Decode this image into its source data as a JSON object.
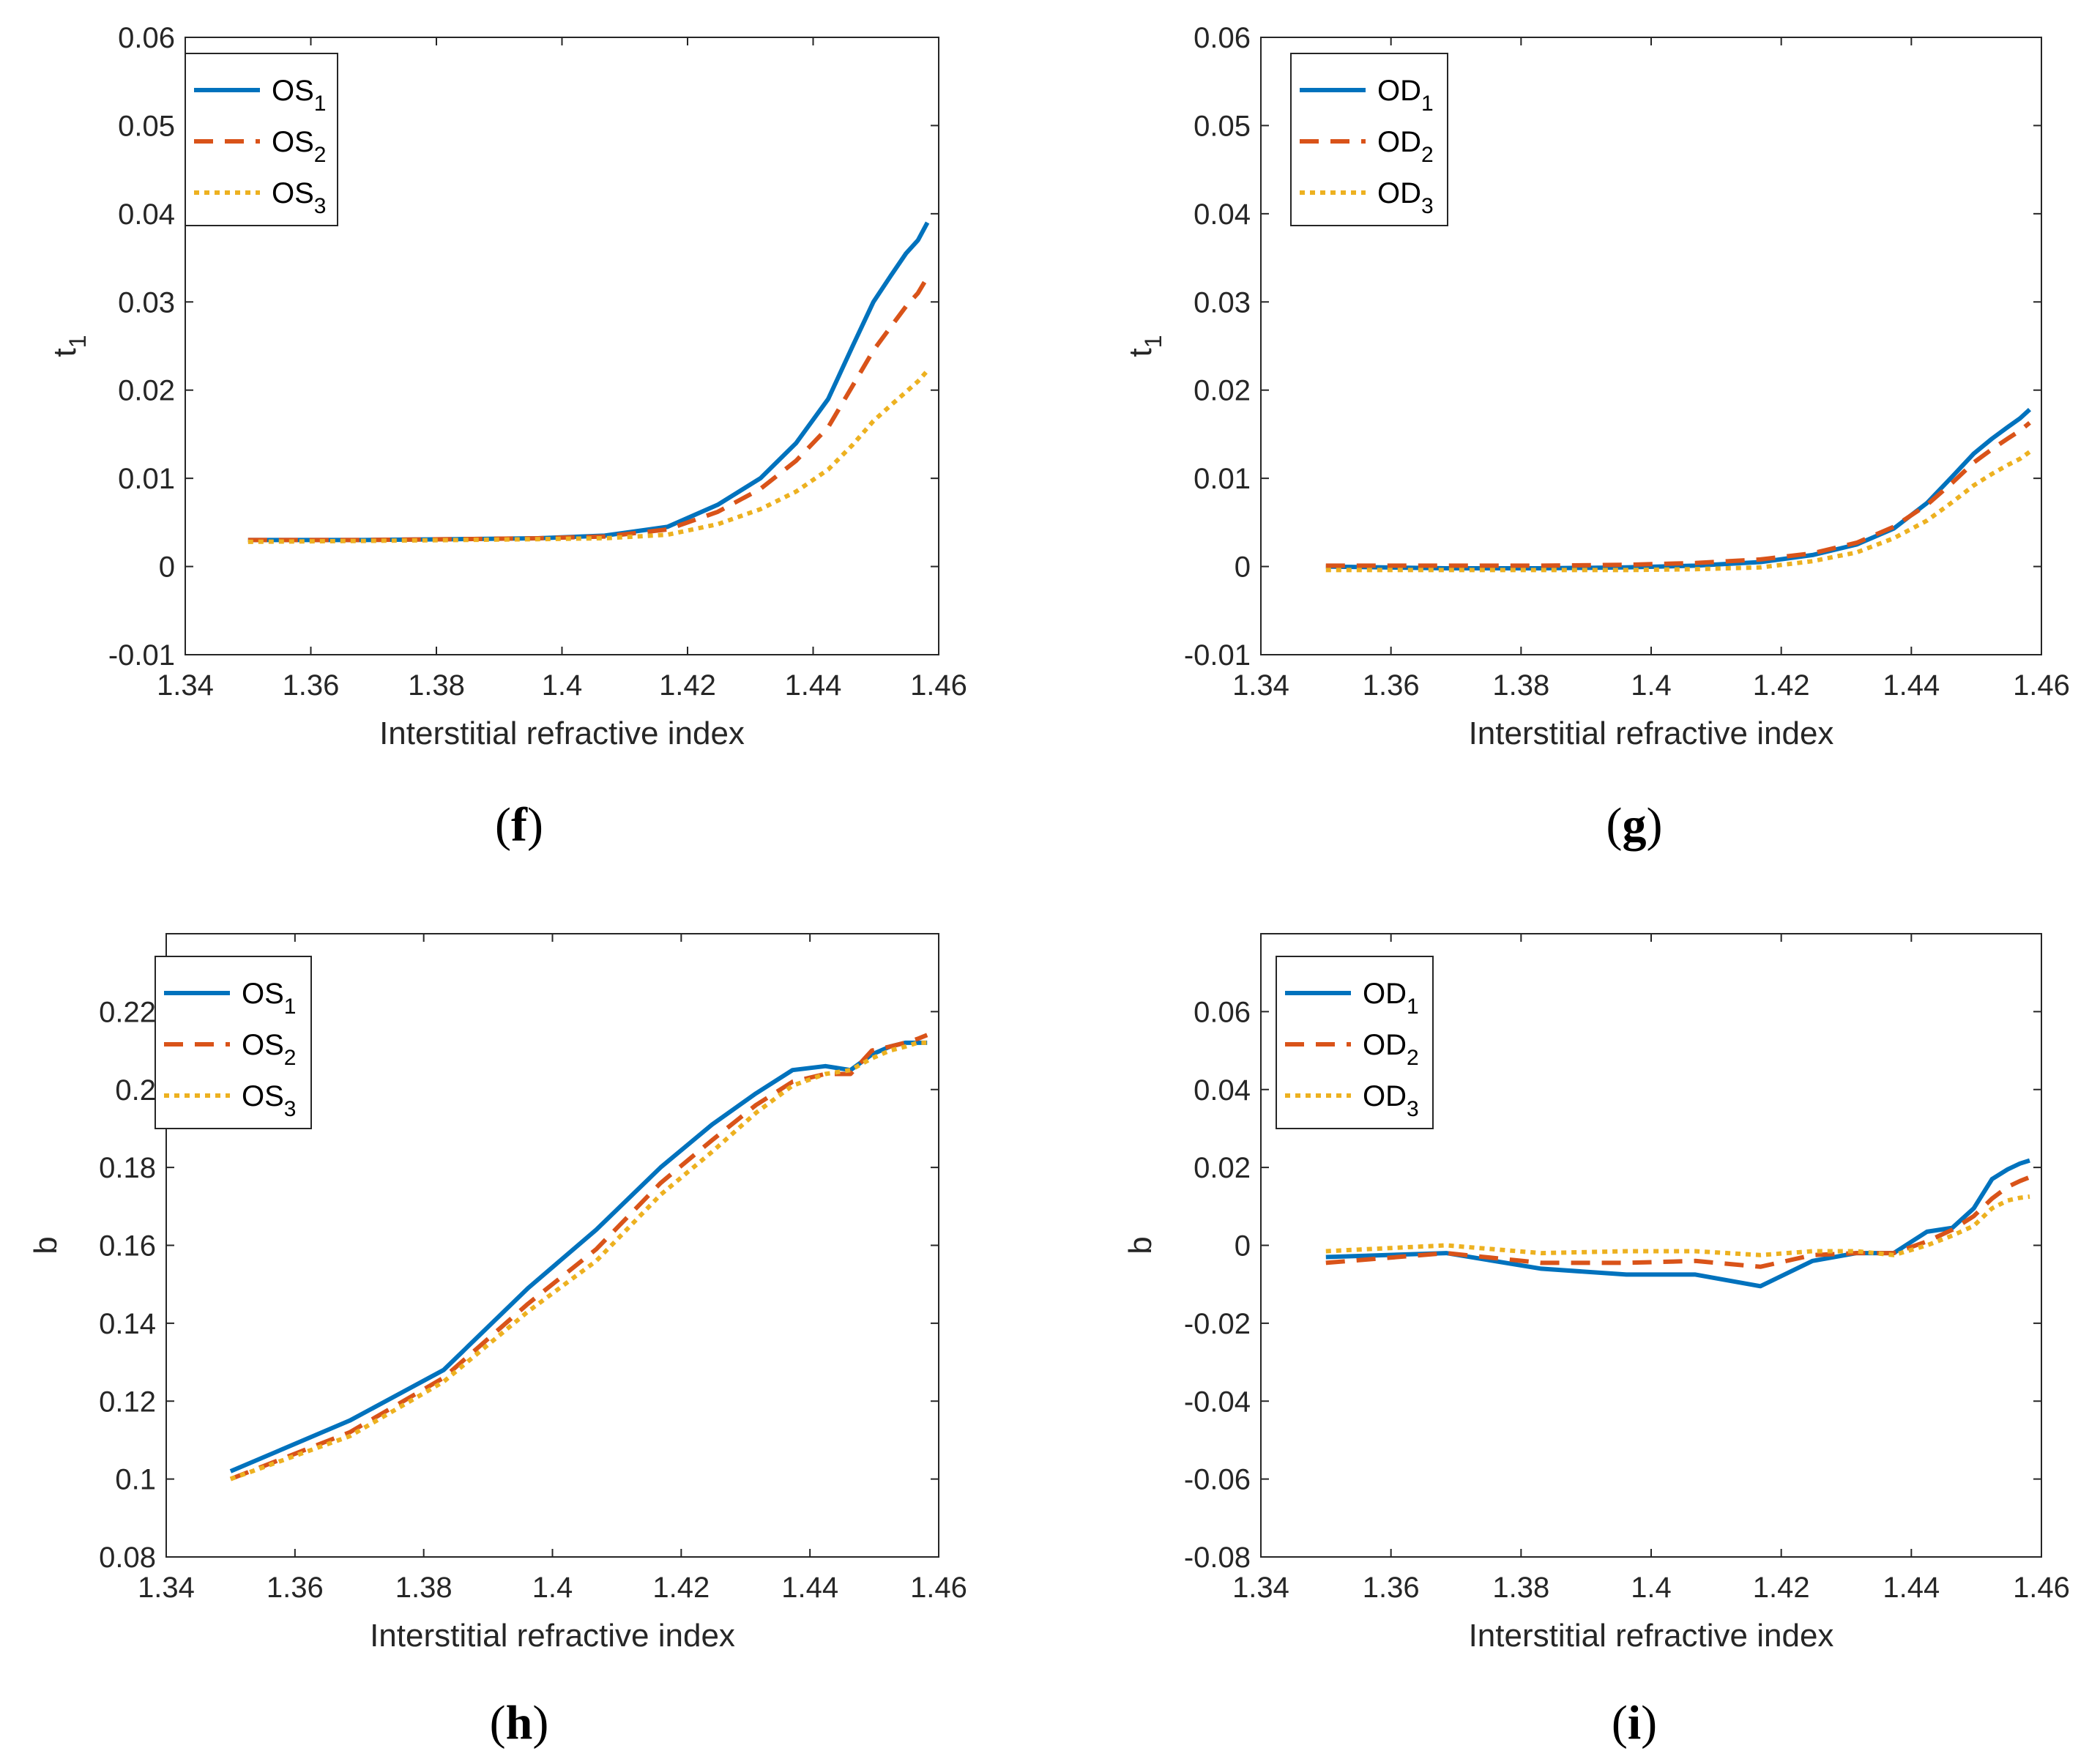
{
  "figure": {
    "colors": {
      "series1": "#0072BD",
      "series2": "#D95319",
      "series3": "#EDB120",
      "axis": "#262626"
    }
  },
  "chart_data": [
    {
      "panel": "f",
      "type": "line",
      "title": "",
      "xlabel": "Interstitial refractive index",
      "ylabel": "t",
      "ylabel_sub": "1",
      "xlim": [
        1.34,
        1.46
      ],
      "ylim": [
        -0.01,
        0.06
      ],
      "xticks": [
        "1.34",
        "1.36",
        "1.38",
        "1.4",
        "1.42",
        "1.44",
        "1.46"
      ],
      "yticks": [
        "-0.01",
        "0",
        "0.01",
        "0.02",
        "0.03",
        "0.04",
        "0.05",
        "0.06"
      ],
      "legend": {
        "position": "top-left"
      },
      "x": [
        1.35,
        1.3685,
        1.3831,
        1.3962,
        1.4068,
        1.4168,
        1.4248,
        1.4316,
        1.4373,
        1.4424,
        1.4463,
        1.4496,
        1.4524,
        1.4548,
        1.4567,
        1.4582
      ],
      "series": [
        {
          "name": "OS",
          "sub": "1",
          "style": "solid",
          "values": [
            0.003,
            0.003,
            0.0031,
            0.0032,
            0.0035,
            0.0045,
            0.007,
            0.01,
            0.014,
            0.019,
            0.025,
            0.03,
            0.033,
            0.0355,
            0.037,
            0.039
          ]
        },
        {
          "name": "OS",
          "sub": "2",
          "style": "dashed",
          "values": [
            0.003,
            0.003,
            0.0031,
            0.0032,
            0.0034,
            0.0042,
            0.0062,
            0.0088,
            0.012,
            0.0158,
            0.0205,
            0.0245,
            0.0272,
            0.0295,
            0.031,
            0.0328
          ]
        },
        {
          "name": "OS",
          "sub": "3",
          "style": "dotted",
          "values": [
            0.0028,
            0.0029,
            0.003,
            0.0031,
            0.0032,
            0.0036,
            0.0048,
            0.0065,
            0.0085,
            0.011,
            0.0138,
            0.0165,
            0.0183,
            0.0198,
            0.021,
            0.0222
          ]
        }
      ]
    },
    {
      "panel": "g",
      "type": "line",
      "title": "",
      "xlabel": "Interstitial refractive index",
      "ylabel": "t",
      "ylabel_sub": "1",
      "xlim": [
        1.34,
        1.46
      ],
      "ylim": [
        -0.01,
        0.06
      ],
      "xticks": [
        "1.34",
        "1.36",
        "1.38",
        "1.4",
        "1.42",
        "1.44",
        "1.46"
      ],
      "yticks": [
        "-0.01",
        "0",
        "0.01",
        "0.02",
        "0.03",
        "0.04",
        "0.05",
        "0.06"
      ],
      "legend": {
        "position": "top-left"
      },
      "x": [
        1.35,
        1.3685,
        1.3831,
        1.3962,
        1.4068,
        1.4168,
        1.4248,
        1.4316,
        1.4373,
        1.4424,
        1.4463,
        1.4496,
        1.4524,
        1.4548,
        1.4567,
        1.4582
      ],
      "series": [
        {
          "name": "OD",
          "sub": "1",
          "style": "solid",
          "values": [
            0.0,
            -0.0002,
            -0.0002,
            -0.0001,
            0.0001,
            0.0005,
            0.0013,
            0.0025,
            0.0043,
            0.0072,
            0.0102,
            0.0128,
            0.0145,
            0.0158,
            0.0168,
            0.0178
          ]
        },
        {
          "name": "OD",
          "sub": "2",
          "style": "dashed",
          "values": [
            0.0001,
            0.0001,
            0.0001,
            0.0002,
            0.0004,
            0.0008,
            0.0015,
            0.0027,
            0.0045,
            0.007,
            0.0095,
            0.0118,
            0.0133,
            0.0145,
            0.0154,
            0.0163
          ]
        },
        {
          "name": "OD",
          "sub": "3",
          "style": "dotted",
          "values": [
            -0.0004,
            -0.0004,
            -0.0004,
            -0.0004,
            -0.0003,
            -0.0001,
            0.0006,
            0.0016,
            0.0032,
            0.0052,
            0.0073,
            0.0092,
            0.0105,
            0.0115,
            0.0122,
            0.013
          ]
        }
      ]
    },
    {
      "panel": "h",
      "type": "line",
      "title": "",
      "xlabel": "Interstitial refractive index",
      "ylabel": "b",
      "ylabel_sub": "",
      "xlim": [
        1.34,
        1.46
      ],
      "ylim": [
        0.08,
        0.24
      ],
      "xticks": [
        "1.34",
        "1.36",
        "1.38",
        "1.4",
        "1.42",
        "1.44",
        "1.46"
      ],
      "yticks": [
        "0.08",
        "0.1",
        "0.12",
        "0.14",
        "0.16",
        "0.18",
        "0.2",
        "0.22"
      ],
      "legend": {
        "position": "top-left"
      },
      "x": [
        1.35,
        1.3685,
        1.3831,
        1.3962,
        1.4068,
        1.4168,
        1.4248,
        1.4316,
        1.4373,
        1.4424,
        1.4463,
        1.4496,
        1.4524,
        1.4548,
        1.4567,
        1.4582
      ],
      "series": [
        {
          "name": "OS",
          "sub": "1",
          "style": "solid",
          "values": [
            0.102,
            0.115,
            0.128,
            0.149,
            0.164,
            0.18,
            0.191,
            0.199,
            0.205,
            0.206,
            0.205,
            0.209,
            0.211,
            0.212,
            0.212,
            0.212
          ]
        },
        {
          "name": "OS",
          "sub": "2",
          "style": "dashed",
          "values": [
            0.1,
            0.112,
            0.126,
            0.145,
            0.159,
            0.176,
            0.187,
            0.196,
            0.202,
            0.204,
            0.204,
            0.21,
            0.211,
            0.212,
            0.213,
            0.214
          ]
        },
        {
          "name": "OS",
          "sub": "3",
          "style": "dotted",
          "values": [
            0.1,
            0.111,
            0.125,
            0.143,
            0.156,
            0.173,
            0.184,
            0.194,
            0.201,
            0.204,
            0.205,
            0.208,
            0.21,
            0.211,
            0.212,
            0.212
          ]
        }
      ]
    },
    {
      "panel": "i",
      "type": "line",
      "title": "",
      "xlabel": "Interstitial refractive index",
      "ylabel": "b",
      "ylabel_sub": "",
      "xlim": [
        1.34,
        1.46
      ],
      "ylim": [
        -0.08,
        0.08
      ],
      "xticks": [
        "1.34",
        "1.36",
        "1.38",
        "1.4",
        "1.42",
        "1.44",
        "1.46"
      ],
      "yticks": [
        "-0.08",
        "-0.06",
        "-0.04",
        "-0.02",
        "0",
        "0.02",
        "0.04",
        "0.06"
      ],
      "legend": {
        "position": "top-left"
      },
      "x": [
        1.35,
        1.3685,
        1.3831,
        1.3962,
        1.4068,
        1.4168,
        1.4248,
        1.4316,
        1.4373,
        1.4424,
        1.4463,
        1.4496,
        1.4524,
        1.4548,
        1.4567,
        1.4582
      ],
      "series": [
        {
          "name": "OD",
          "sub": "1",
          "style": "solid",
          "values": [
            -0.003,
            -0.002,
            -0.006,
            -0.0075,
            -0.0075,
            -0.0105,
            -0.004,
            -0.002,
            -0.002,
            0.0035,
            0.0045,
            0.0095,
            0.017,
            0.0195,
            0.021,
            0.0218
          ]
        },
        {
          "name": "OD",
          "sub": "2",
          "style": "dashed",
          "values": [
            -0.0045,
            -0.002,
            -0.0045,
            -0.0045,
            -0.004,
            -0.0055,
            -0.0025,
            -0.002,
            -0.002,
            0.001,
            0.004,
            0.0075,
            0.012,
            0.015,
            0.0165,
            0.0175
          ]
        },
        {
          "name": "OD",
          "sub": "3",
          "style": "dotted",
          "values": [
            -0.0015,
            0.0,
            -0.002,
            -0.0015,
            -0.0015,
            -0.0025,
            -0.0015,
            -0.0015,
            -0.0025,
            0.0,
            0.0025,
            0.005,
            0.0095,
            0.0115,
            0.0122,
            0.0125
          ]
        }
      ]
    }
  ]
}
